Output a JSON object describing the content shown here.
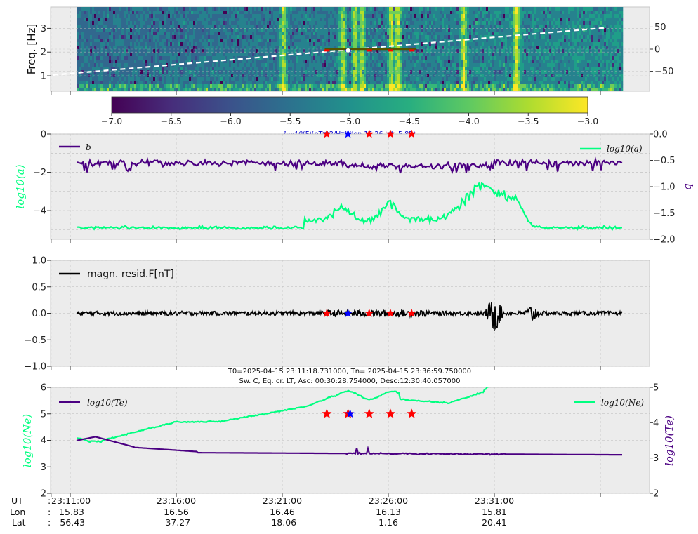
{
  "colors": {
    "green": "#00ff80",
    "purple": "#4b0082",
    "black": "#000000",
    "white": "#ffffff",
    "star_red": "#ff0000",
    "star_blue": "#0000ff",
    "panel_bg": "#ececec",
    "label_blue": "#0000cc"
  },
  "chart_data": [
    {
      "type": "heatmap",
      "panel": "spectrogram",
      "ylabel": "Freq. [Hz]",
      "yticks": [
        "1",
        "2",
        "3"
      ],
      "y2ticks": [
        "50",
        "0",
        "−50"
      ],
      "colorbar": {
        "colormap": "viridis",
        "range": [
          -7.0,
          -3.0
        ],
        "ticks": [
          "−7.0",
          "−6.5",
          "−6.0",
          "−5.5",
          "−5.0",
          "−4.5",
          "−4.0",
          "−3.5",
          "−3.0"
        ],
        "label": "log10(F)[nT**2/Hz] (lon 16.26 lat -5.85)",
        "label_parts": {
          "math": "log10",
          "rest": "(F)[nT**2/Hz] (lon 16.26 lat -5.85)"
        }
      },
      "yellow_bands_minutes": [
        10.0,
        12.8,
        13.4,
        13.7,
        15.1,
        15.4,
        18.5,
        21.0
      ],
      "dashed_line": {
        "x_minutes": [
          -1.2,
          25.2
        ],
        "y2": [
          -60,
          48
        ],
        "color": "white"
      },
      "overlay_segment": {
        "x_minutes": [
          12.0,
          16.3
        ],
        "y2": [
          0,
          0
        ]
      },
      "stars_minutes": [
        12.1,
        13.1,
        14.1,
        15.1,
        16.1
      ]
    },
    {
      "type": "line",
      "panel": "fit_parameters",
      "ylabel": "log10(a)",
      "ylabel_math": "log_{10}(a)",
      "y2label": "b",
      "ylim": [
        -5.5,
        0
      ],
      "yticks": [
        "0",
        "−2",
        "−4"
      ],
      "y2lim": [
        -2.0,
        0.0
      ],
      "y2ticks": [
        "0.0",
        "−0.5",
        "−1.0",
        "−1.5",
        "−2.0"
      ],
      "legend_left": "b",
      "legend_right": "log10(a)",
      "series": [
        {
          "name": "b",
          "axis": "right",
          "baseline": -0.55,
          "color": "purple"
        },
        {
          "name": "log10(a)",
          "axis": "left",
          "baseline": -4.9,
          "color": "green",
          "peaks_minutes": [
            12.8,
            15.1,
            19.5,
            21.0
          ],
          "peak_values": [
            -4.2,
            -4.0,
            -3.1,
            -3.8
          ]
        }
      ],
      "stars_minutes": [
        12.1,
        13.1,
        14.1,
        15.1,
        16.1
      ],
      "star_value": 0
    },
    {
      "type": "line",
      "panel": "residual",
      "legend": "magn. resid.F[nT]",
      "ylim": [
        -1.0,
        1.0
      ],
      "yticks": [
        "1.0",
        "0.5",
        "0.0",
        "−0.5",
        "−1.0"
      ],
      "series": [
        {
          "name": "magn. resid.F[nT]",
          "amplitude": 0.04,
          "color": "black",
          "spikes_minutes": [
            20.0,
            21.8
          ],
          "spike_values": [
            0.4,
            0.2
          ]
        }
      ],
      "stars_minutes": [
        12.1,
        13.1,
        14.1,
        15.1,
        16.1
      ],
      "star_value": 0
    },
    {
      "type": "line",
      "panel": "plasma",
      "title_line1": "T0=2025-04-15 23:11:18.731000, Tn= 2025-04-15 23:36:59.750000",
      "title_line2": "Sw. C, Eq. cr. LT, Asc: 00:30:28.754000, Desc:12:30:40.057000",
      "ylabel": "log10(Ne)",
      "y2label": "log10(Te)",
      "ylim": [
        2,
        6
      ],
      "yticks": [
        "6",
        "5",
        "4",
        "3",
        "2"
      ],
      "y2lim": [
        2,
        5
      ],
      "y2ticks": [
        "5",
        "4",
        "3",
        "2"
      ],
      "legend_left": "log10(Te)",
      "legend_right": "log10(Ne)",
      "series": [
        {
          "name": "log10(Ne)",
          "axis": "left",
          "color": "green"
        },
        {
          "name": "log10(Te)",
          "axis": "right",
          "color": "purple"
        }
      ],
      "stars_minutes": [
        12.1,
        13.1,
        14.1,
        15.1,
        16.1
      ],
      "star_value": 5
    }
  ],
  "ut_table": {
    "row_labels": [
      "UT",
      "Lon",
      "Lat"
    ],
    "colons": [
      ":",
      ":",
      ":"
    ],
    "columns": [
      {
        "ut": "23:11:00",
        "lon": "15.83",
        "lat": "-56.43"
      },
      {
        "ut": "23:16:00",
        "lon": "16.56",
        "lat": "-37.27"
      },
      {
        "ut": "23:21:00",
        "lon": "16.46",
        "lat": "-18.06"
      },
      {
        "ut": "23:26:00",
        "lon": "16.13",
        "lat": "1.16"
      },
      {
        "ut": "23:31:00",
        "lon": "15.81",
        "lat": "20.41"
      }
    ]
  }
}
